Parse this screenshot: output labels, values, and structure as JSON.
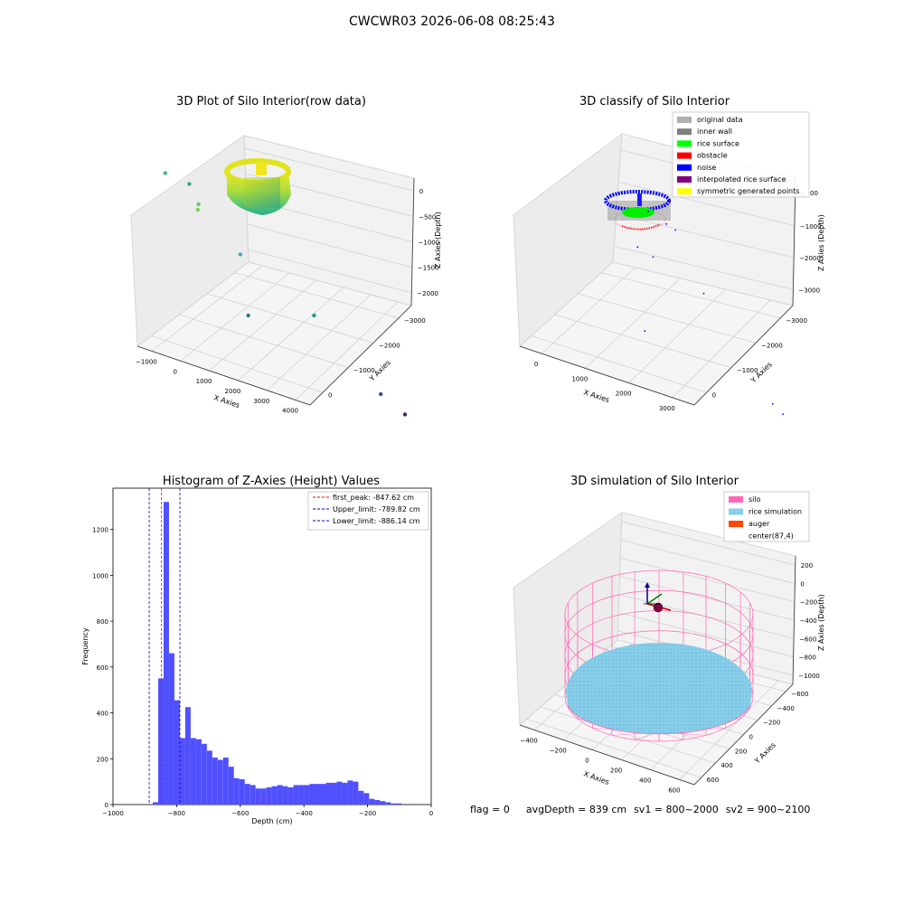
{
  "suptitle": "CWCWR03 2026-06-08 08:25:43",
  "footer": {
    "flag": "flag = 0",
    "avg_depth": "avgDepth = 839 cm",
    "sv1": "sv1 = 800~2000",
    "sv2": "sv2 = 900~2100"
  },
  "colors": {
    "hist_bar": "#5050ff",
    "first_peak_line": "#ff0000",
    "limit_line": "#0000cc",
    "silo": "#ff69b4",
    "rice_simulation": "#87ceeb",
    "auger": "#ff4500",
    "original_data": "#b0b0b0",
    "inner_wall": "#808080",
    "rice_surface": "#00ff00",
    "obstacle": "#ff0000",
    "noise": "#0000ff",
    "interpolated_rice_surface": "#800080",
    "symmetric_generated_points": "#ffff00"
  },
  "chart_data": [
    {
      "type": "scatter",
      "projection": "3d",
      "title": "3D Plot of Silo Interior(row data)",
      "xlabel": "X Axies",
      "ylabel": "Y Axies",
      "zlabel": "Z Axies (Depth)",
      "xticks": [
        "−1000",
        "0",
        "1000",
        "2000",
        "3000",
        "4000"
      ],
      "yticks": [
        "0",
        "−1000",
        "−2000",
        "−3000"
      ],
      "zticks": [
        "0",
        "−500",
        "−1000",
        "−1500",
        "−2000"
      ],
      "colormap": "viridis",
      "outliers": [
        {
          "x": -300,
          "y": 300,
          "z": -600
        },
        {
          "x": 400,
          "y": 500,
          "z": -700
        },
        {
          "x": 500,
          "y": 300,
          "z": -900
        },
        {
          "x": 300,
          "y": 0,
          "z": -900
        },
        {
          "x": 1200,
          "y": -200,
          "z": -1300
        },
        {
          "x": 2000,
          "y": -1800,
          "z": -1400
        },
        {
          "x": 600,
          "y": -1500,
          "z": -1800
        },
        {
          "x": 3300,
          "y": -2300,
          "z": -2100
        },
        {
          "x": 3700,
          "y": -2600,
          "z": -2200
        }
      ]
    },
    {
      "type": "scatter",
      "projection": "3d",
      "title": "3D classify of Silo Interior",
      "xlabel": "X Axies",
      "ylabel": "Y Axies",
      "zlabel": "Z Axies (Depth)",
      "xticks": [
        "0",
        "1000",
        "2000",
        "3000"
      ],
      "yticks": [
        "0",
        "−1000",
        "−2000",
        "−3000"
      ],
      "zticks": [
        "0",
        "−1000",
        "−2000",
        "−3000"
      ],
      "legend_position": "top-right",
      "legend": [
        {
          "label": "original data",
          "color": "#b0b0b0"
        },
        {
          "label": "inner wall",
          "color": "#808080"
        },
        {
          "label": "rice surface",
          "color": "#00ff00"
        },
        {
          "label": "obstacle",
          "color": "#ff0000"
        },
        {
          "label": "noise",
          "color": "#0000ff"
        },
        {
          "label": "interpolated rice surface",
          "color": "#800080"
        },
        {
          "label": "symmetric generated points",
          "color": "#ffff00"
        }
      ],
      "partial_tick": "00",
      "noise_points": [
        {
          "x": 1300,
          "y": -400,
          "z": -700
        },
        {
          "x": 1700,
          "y": -500,
          "z": -800
        },
        {
          "x": 2000,
          "y": -400,
          "z": -900
        },
        {
          "x": 700,
          "y": -900,
          "z": -1300
        },
        {
          "x": 1100,
          "y": -900,
          "z": -1400
        },
        {
          "x": 2400,
          "y": -900,
          "z": -1800
        },
        {
          "x": 300,
          "y": -1800,
          "z": -2600
        },
        {
          "x": 3200,
          "y": -2400,
          "z": -3000
        },
        {
          "x": 3400,
          "y": -2500,
          "z": -3100
        }
      ]
    },
    {
      "type": "bar",
      "title": "Histogram of Z-Axies (Height) Values",
      "xlabel": "Depth (cm)",
      "ylabel": "Frequency",
      "xlim": [
        -1000,
        0
      ],
      "ylim": [
        0,
        1380
      ],
      "xticks": [
        -1000,
        -800,
        -600,
        -400,
        -200,
        0
      ],
      "xtick_labels": [
        "−1000",
        "−800",
        "−600",
        "−400",
        "−200",
        "0"
      ],
      "yticks": [
        0,
        200,
        400,
        600,
        800,
        1000,
        1200
      ],
      "bin_width": 17,
      "bin_edges_start": -875,
      "values": [
        10,
        550,
        1320,
        660,
        455,
        290,
        425,
        290,
        285,
        265,
        235,
        205,
        195,
        205,
        165,
        115,
        110,
        90,
        85,
        70,
        70,
        75,
        80,
        85,
        80,
        75,
        85,
        85,
        85,
        90,
        90,
        90,
        95,
        95,
        100,
        95,
        105,
        100,
        60,
        50,
        25,
        20,
        15,
        10,
        5,
        5
      ],
      "legend_position": "top-right",
      "legend": [
        {
          "label": "first_peak: -847.62 cm",
          "color": "#ff0000",
          "value": -847.62
        },
        {
          "label": "Upper_limit: -789.82 cm",
          "color": "#0000cc",
          "value": -789.82
        },
        {
          "label": "Lower_limit: -886.14 cm",
          "color": "#0000cc",
          "value": -886.14
        }
      ]
    },
    {
      "type": "scatter",
      "projection": "3d",
      "title": "3D simulation of Silo Interior",
      "xlabel": "X Axies",
      "ylabel": "Y Axies",
      "zlabel": "Z Axies (Depth)",
      "xticks": [
        "−400",
        "−200",
        "0",
        "200",
        "400",
        "600"
      ],
      "yticks": [
        "600",
        "400",
        "200",
        "0",
        "−200",
        "−400",
        "−600"
      ],
      "zticks": [
        "200",
        "0",
        "−200",
        "−400",
        "−600",
        "−800",
        "−1000"
      ],
      "legend_position": "top-right",
      "legend": [
        {
          "label": "silo",
          "color": "#ff69b4"
        },
        {
          "label": "rice simulation",
          "color": "#87ceeb"
        },
        {
          "label": "auger",
          "color": "#ff4500"
        },
        {
          "label": "center(87,4)",
          "color": ""
        }
      ]
    }
  ]
}
